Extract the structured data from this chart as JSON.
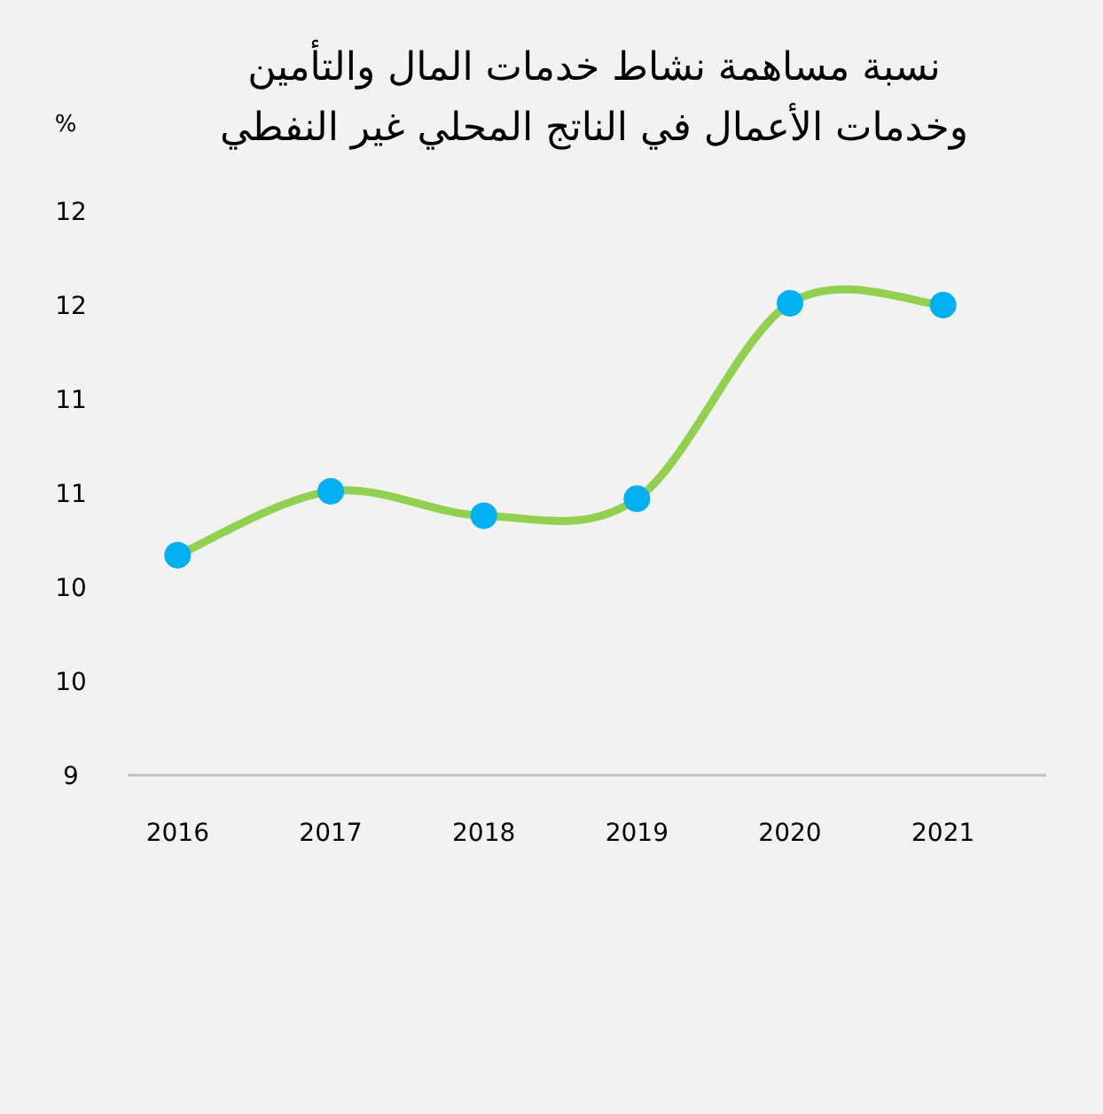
{
  "chart_data": {
    "type": "line",
    "title": "نسبة مساهمة نشاط خدمات المال والتأمين وخدمات الأعمال في الناتج المحلي غير النفطي",
    "ylabel": "%",
    "categories": [
      "2016",
      "2017",
      "2018",
      "2019",
      "2020",
      "2021"
    ],
    "series": [
      {
        "color": "#92d050",
        "colors": [
          "#00b0f0",
          "#00b0f0",
          "#00b0f0",
          "#00b0f0",
          "#00b0f0",
          "#00b0f0"
        ],
        "values": [
          10.17,
          10.51,
          10.38,
          10.47,
          11.51,
          11.5
        ]
      }
    ],
    "marker": "circle",
    "ylim": [
      9,
      12
    ],
    "yticks": [
      {
        "value": 9,
        "label": "9"
      },
      {
        "value": 9.5,
        "label": "10"
      },
      {
        "value": 10,
        "label": "10"
      },
      {
        "value": 10.5,
        "label": "11"
      },
      {
        "value": 11,
        "label": "11"
      },
      {
        "value": 11.5,
        "label": "12"
      },
      {
        "value": 12,
        "label": "12"
      }
    ],
    "grid": false
  }
}
